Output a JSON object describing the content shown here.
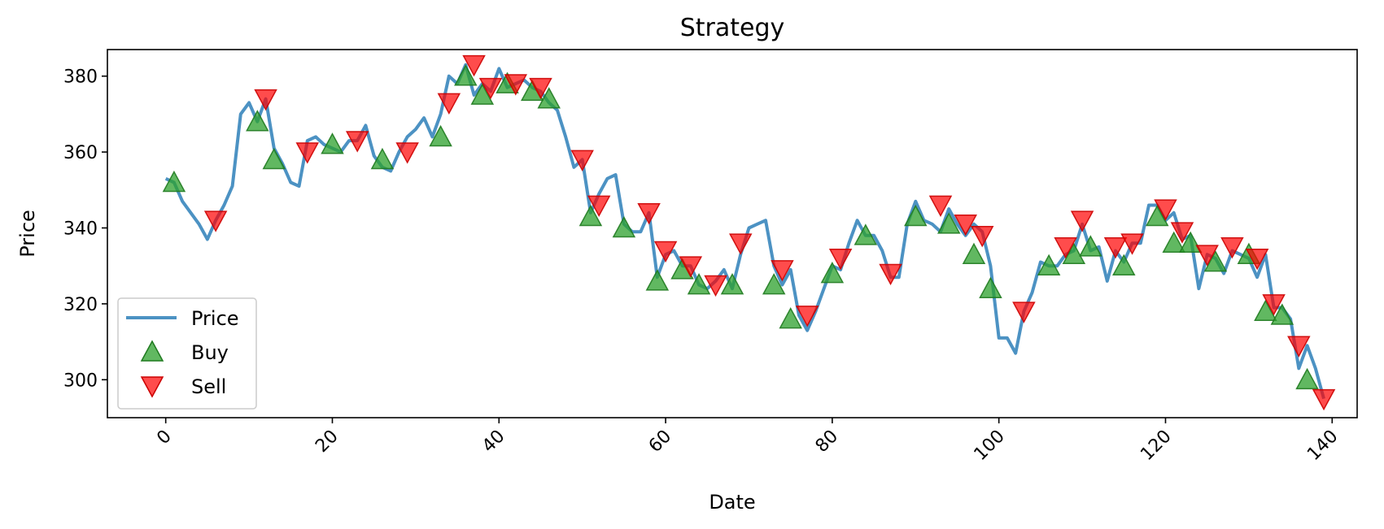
{
  "chart_data": {
    "type": "line",
    "title": "Strategy",
    "xlabel": "Date",
    "ylabel": "Price",
    "xlim": [
      -7,
      143
    ],
    "ylim": [
      290,
      387
    ],
    "x_ticks": [
      0,
      20,
      40,
      60,
      80,
      100,
      120,
      140
    ],
    "x_tick_labels": [
      "0",
      "20",
      "40",
      "60",
      "80",
      "100",
      "120",
      "140"
    ],
    "y_ticks": [
      300,
      320,
      340,
      360,
      380
    ],
    "y_tick_labels": [
      "300",
      "320",
      "340",
      "360",
      "380"
    ],
    "grid": false,
    "legend_position": "lower-left",
    "series": [
      {
        "name": "Price",
        "kind": "line",
        "color": "#1f77b4",
        "x": [
          0,
          1,
          2,
          3,
          4,
          5,
          6,
          7,
          8,
          9,
          10,
          11,
          12,
          13,
          14,
          15,
          16,
          17,
          18,
          19,
          20,
          21,
          22,
          23,
          24,
          25,
          26,
          27,
          28,
          29,
          30,
          31,
          32,
          33,
          34,
          35,
          36,
          37,
          38,
          39,
          40,
          41,
          42,
          43,
          44,
          45,
          46,
          47,
          48,
          49,
          50,
          51,
          52,
          53,
          54,
          55,
          56,
          57,
          58,
          59,
          60,
          61,
          62,
          63,
          64,
          65,
          66,
          67,
          68,
          69,
          70,
          71,
          72,
          73,
          74,
          75,
          76,
          77,
          78,
          79,
          80,
          81,
          82,
          83,
          84,
          85,
          86,
          87,
          88,
          89,
          90,
          91,
          92,
          93,
          94,
          95,
          96,
          97,
          98,
          99,
          100,
          101,
          102,
          103,
          104,
          105,
          106,
          107,
          108,
          109,
          110,
          111,
          112,
          113,
          114,
          115,
          116,
          117,
          118,
          119,
          120,
          121,
          122,
          123,
          124,
          125,
          126,
          127,
          128,
          129,
          130,
          131,
          132,
          133,
          134,
          135,
          136,
          137,
          138,
          139
        ],
        "y": [
          353,
          352,
          347,
          344,
          341,
          337,
          342,
          346,
          351,
          370,
          373,
          368,
          374,
          361,
          357,
          352,
          351,
          363,
          364,
          362,
          361,
          360,
          363,
          363,
          367,
          359,
          356,
          355,
          360,
          364,
          366,
          369,
          364,
          370,
          380,
          378,
          383,
          375,
          378,
          376,
          382,
          377,
          378,
          379,
          377,
          376,
          373,
          371,
          364,
          356,
          358,
          344,
          349,
          353,
          354,
          341,
          339,
          339,
          344,
          327,
          333,
          334,
          330,
          330,
          325,
          324,
          326,
          329,
          324,
          333,
          340,
          341,
          342,
          330,
          325,
          329,
          317,
          313,
          318,
          324,
          330,
          329,
          336,
          342,
          338,
          338,
          334,
          327,
          327,
          341,
          347,
          342,
          341,
          339,
          345,
          341,
          338,
          341,
          339,
          330,
          311,
          311,
          307,
          318,
          323,
          331,
          330,
          330,
          333,
          334,
          341,
          334,
          335,
          326,
          334,
          331,
          336,
          336,
          346,
          346,
          342,
          344,
          337,
          338,
          324,
          333,
          332,
          328,
          334,
          333,
          332,
          327,
          333,
          319,
          319,
          316,
          303,
          309,
          303,
          295
        ]
      },
      {
        "name": "Buy",
        "kind": "marker-up",
        "color": "#2ca02c",
        "x": [
          1,
          11,
          13,
          20,
          26,
          33,
          36,
          38,
          41,
          44,
          46,
          51,
          55,
          59,
          62,
          64,
          68,
          73,
          75,
          80,
          84,
          90,
          94,
          97,
          99,
          106,
          109,
          111,
          115,
          119,
          121,
          123,
          126,
          130,
          132,
          134,
          137
        ],
        "y": [
          352,
          368,
          358,
          362,
          358,
          364,
          380,
          375,
          378,
          376,
          374,
          343,
          340,
          326,
          329,
          325,
          325,
          325,
          316,
          328,
          338,
          343,
          341,
          333,
          324,
          330,
          333,
          335,
          330,
          343,
          336,
          336,
          331,
          333,
          318,
          317,
          300
        ]
      },
      {
        "name": "Sell",
        "kind": "marker-down",
        "color": "#ff0000",
        "x": [
          6,
          12,
          17,
          23,
          29,
          34,
          37,
          39,
          42,
          45,
          50,
          52,
          58,
          60,
          63,
          66,
          69,
          74,
          77,
          81,
          87,
          93,
          96,
          98,
          103,
          108,
          110,
          114,
          116,
          120,
          122,
          125,
          128,
          131,
          133,
          136,
          139
        ],
        "y": [
          342,
          374,
          360,
          363,
          360,
          373,
          383,
          377,
          378,
          377,
          358,
          346,
          344,
          334,
          330,
          325,
          336,
          329,
          317,
          332,
          328,
          346,
          341,
          338,
          318,
          335,
          342,
          335,
          336,
          345,
          339,
          333,
          335,
          332,
          320,
          309,
          295
        ]
      }
    ]
  }
}
